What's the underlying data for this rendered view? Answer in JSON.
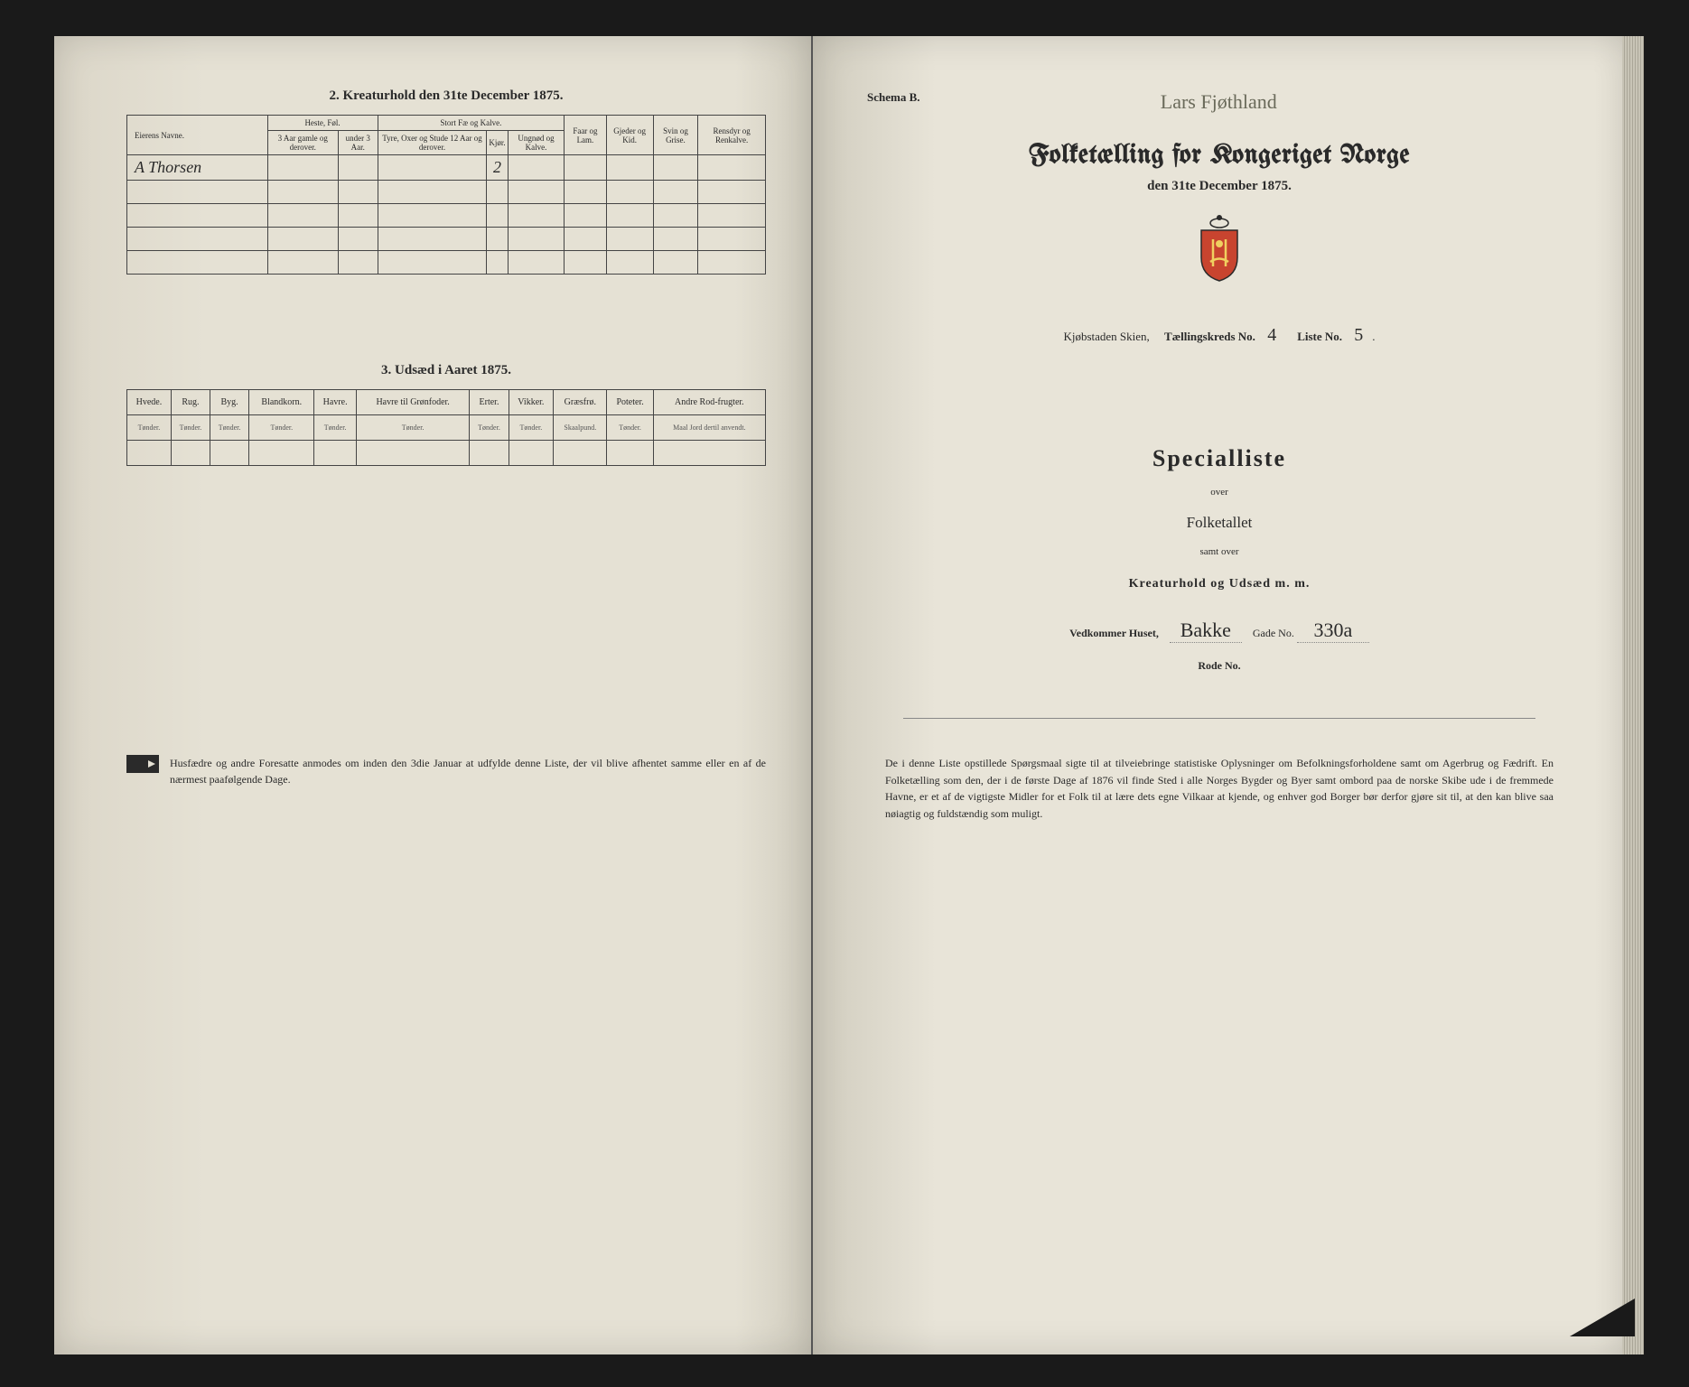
{
  "leftPage": {
    "section2Title": "2.  Kreaturhold den 31te December 1875.",
    "livestock": {
      "ownerHeader": "Eierens Navne.",
      "groupHeaders": [
        "Heste, Føl.",
        "Stort Fæ og Kalve."
      ],
      "colHeaders": [
        "3 Aar gamle og derover.",
        "under 3 Aar.",
        "Tyre, Oxer og Stude 12 Aar og derover.",
        "Kjør.",
        "Ungnød og Kalve.",
        "Faar og Lam.",
        "Gjeder og Kid.",
        "Svin og Grise.",
        "Rensdyr og Renkalve."
      ],
      "rows": [
        {
          "owner": "A Thorsen",
          "cells": [
            "",
            "",
            "",
            "2",
            "",
            "",
            "",
            "",
            ""
          ]
        },
        {
          "owner": "",
          "cells": [
            "",
            "",
            "",
            "",
            "",
            "",
            "",
            "",
            ""
          ]
        },
        {
          "owner": "",
          "cells": [
            "",
            "",
            "",
            "",
            "",
            "",
            "",
            "",
            ""
          ]
        },
        {
          "owner": "",
          "cells": [
            "",
            "",
            "",
            "",
            "",
            "",
            "",
            "",
            ""
          ]
        },
        {
          "owner": "",
          "cells": [
            "",
            "",
            "",
            "",
            "",
            "",
            "",
            "",
            ""
          ]
        }
      ]
    },
    "section3Title": "3.  Udsæd i Aaret 1875.",
    "seed": {
      "cols": [
        "Hvede.",
        "Rug.",
        "Byg.",
        "Blandkorn.",
        "Havre.",
        "Havre til Grønfoder.",
        "Erter.",
        "Vikker.",
        "Græsfrø.",
        "Poteter.",
        "Andre Rod-frugter."
      ],
      "units": [
        "Tønder.",
        "Tønder.",
        "Tønder.",
        "Tønder.",
        "Tønder.",
        "Tønder.",
        "Tønder.",
        "Tønder.",
        "Skaalpund.",
        "Tønder.",
        "Maal Jord dertil anvendt."
      ]
    },
    "footnote": "Husfædre og andre Foresatte anmodes om inden den 3die Januar at udfylde denne Liste, der vil blive afhentet samme eller en af de nærmest paafølgende Dage."
  },
  "rightPage": {
    "schema": "Schema B.",
    "topHandwriting": "Lars Fjøthland",
    "mainTitle": "Folketælling for Kongeriget Norge",
    "mainSub": "den 31te December 1875.",
    "districtPrefix": "Kjøbstaden Skien,",
    "districtLabel": "Tællingskreds No.",
    "districtNo": "4",
    "listLabel": "Liste No.",
    "listNo": "5",
    "specTitle": "Specialliste",
    "specOver1": "over",
    "specMid": "Folketallet",
    "specOver2": "samt over",
    "specKrea": "Kreaturhold og Udsæd m. m.",
    "houseLabel1": "Vedkommer Huset,",
    "houseName": "Bakke",
    "houseLabel2": "Gade No.",
    "houseNo": "330a",
    "rodeLabel": "Rode No.",
    "bottomPara": "De i denne Liste opstillede Spørgsmaal sigte til at tilveiebringe statistiske Oplysninger om Befolkningsforholdene samt om Agerbrug og Fædrift. En Folketælling som den, der i de første Dage af 1876 vil finde Sted i alle Norges Bygder og Byer samt ombord paa de norske Skibe ude i de fremmede Havne, er et af de vigtigste Midler for et Folk til at lære dets egne Vilkaar at kjende, og enhver god Borger bør derfor gjøre sit til, at den kan blive saa nøiagtig og fuldstændig som muligt."
  },
  "colors": {
    "paper": "#e5e1d4",
    "ink": "#2a2a2a",
    "border": "#444444",
    "background": "#1a1a1a"
  }
}
